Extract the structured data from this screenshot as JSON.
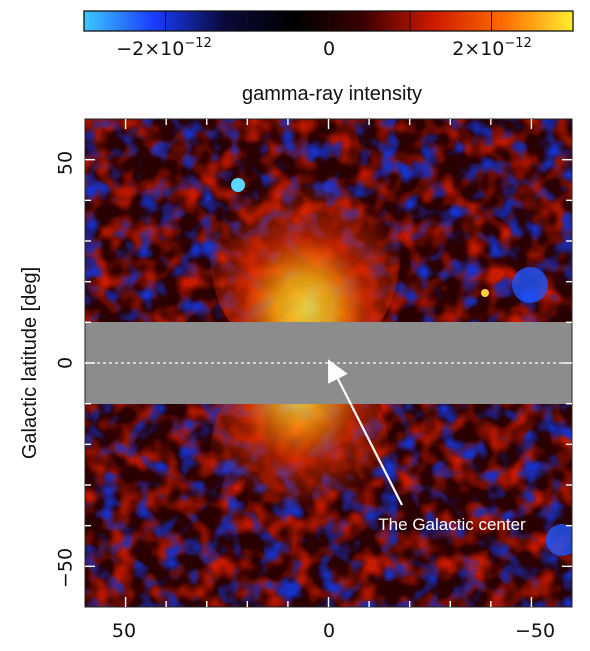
{
  "colorbar": {
    "label": "gamma-ray intensity",
    "tick_labels": [
      {
        "value": -2e-12,
        "mantissa": "−2×10",
        "exponent": "−12"
      },
      {
        "value": 0,
        "mantissa": "0",
        "exponent": ""
      },
      {
        "value": 2e-12,
        "mantissa": "2×10",
        "exponent": "−12"
      }
    ],
    "range": [
      -3e-12,
      3e-12
    ],
    "palette": [
      "#3cc8ff",
      "#1a3cff",
      "#0a0a3a",
      "#000000",
      "#3a0000",
      "#cc1a00",
      "#ff6a00",
      "#ffee30"
    ]
  },
  "map": {
    "y_axis_label": "Galactic latitude [deg]",
    "x_ticks": [
      "50",
      "0",
      "−50"
    ],
    "y_ticks": [
      "50",
      "0",
      "−50"
    ],
    "x_range_deg": [
      60,
      -60
    ],
    "y_range_deg": [
      -60,
      60
    ],
    "masked_band_deg": [
      -10,
      10
    ],
    "mask_color": "#8c8c8c",
    "annotation": "The Galactic center",
    "annotation_target_deg": {
      "l": 0,
      "b": 0
    }
  }
}
